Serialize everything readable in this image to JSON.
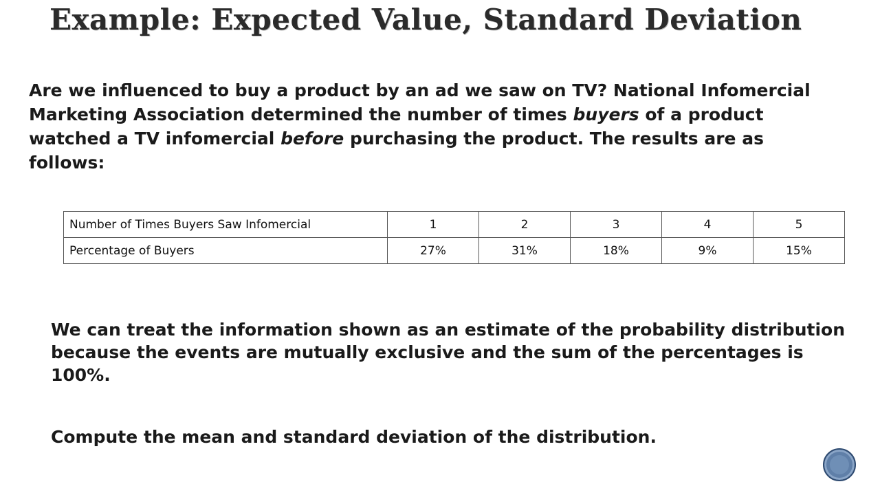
{
  "slide": {
    "title": "Example: Expected Value, Standard Deviation",
    "intro": {
      "part1": "Are we influenced to buy a product by an ad we saw on TV?  National Infomercial Marketing Association determined the number of times ",
      "emph1": "buyers",
      "part2": " of a product watched a TV infomercial ",
      "emph2": "before",
      "part3": " purchasing the product.  The results are as follows:"
    },
    "table": {
      "row1_label": "Number of Times Buyers Saw Infomercial",
      "row1_values": [
        "1",
        "2",
        "3",
        "4",
        "5"
      ],
      "row2_label": "Percentage of Buyers",
      "row2_values": [
        "27%",
        "31%",
        "18%",
        "9%",
        "15%"
      ]
    },
    "paragraph1": "We can treat the information shown as an estimate of the probability distribution because the events are mutually exclusive and the sum of the percentages is 100%.",
    "paragraph2": "Compute the mean and standard deviation of the distribution."
  },
  "colors": {
    "text": "#1a1a1a",
    "nav_button": "#5f7fa8"
  },
  "icons": {
    "nav": "circle-nav-icon"
  }
}
